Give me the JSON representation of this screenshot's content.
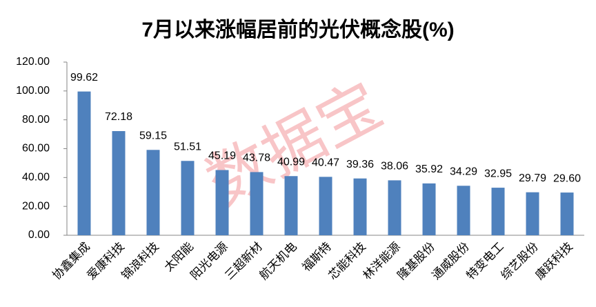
{
  "chart_data": {
    "type": "bar",
    "title": "7月以来涨幅居前的光伏概念股(%)",
    "watermark": "数据宝",
    "categories": [
      "协鑫集成",
      "爱康科技",
      "锦浪科技",
      "太阳能",
      "阳光电源",
      "三超新材",
      "航天机电",
      "福斯特",
      "芯能科技",
      "林洋能源",
      "隆基股份",
      "通威股份",
      "特变电工",
      "综艺股份",
      "康跃科技"
    ],
    "values": [
      99.62,
      72.18,
      59.15,
      51.51,
      45.19,
      43.78,
      40.99,
      40.47,
      39.36,
      38.06,
      35.92,
      34.29,
      32.95,
      29.79,
      29.6
    ],
    "value_labels": [
      "99.62",
      "72.18",
      "59.15",
      "51.51",
      "45.19",
      "43.78",
      "40.99",
      "40.47",
      "39.36",
      "38.06",
      "35.92",
      "34.29",
      "32.95",
      "29.79",
      "29.60"
    ],
    "color": "#4f81bd",
    "ylim": [
      0,
      120
    ],
    "yticks": [
      {
        "value": 0,
        "label": "0.00"
      },
      {
        "value": 20,
        "label": "20.00"
      },
      {
        "value": 40,
        "label": "40.00"
      },
      {
        "value": 60,
        "label": "60.00"
      },
      {
        "value": 80,
        "label": "80.00"
      },
      {
        "value": 100,
        "label": "100.00"
      },
      {
        "value": 120,
        "label": "120.00"
      }
    ],
    "grid": false
  }
}
